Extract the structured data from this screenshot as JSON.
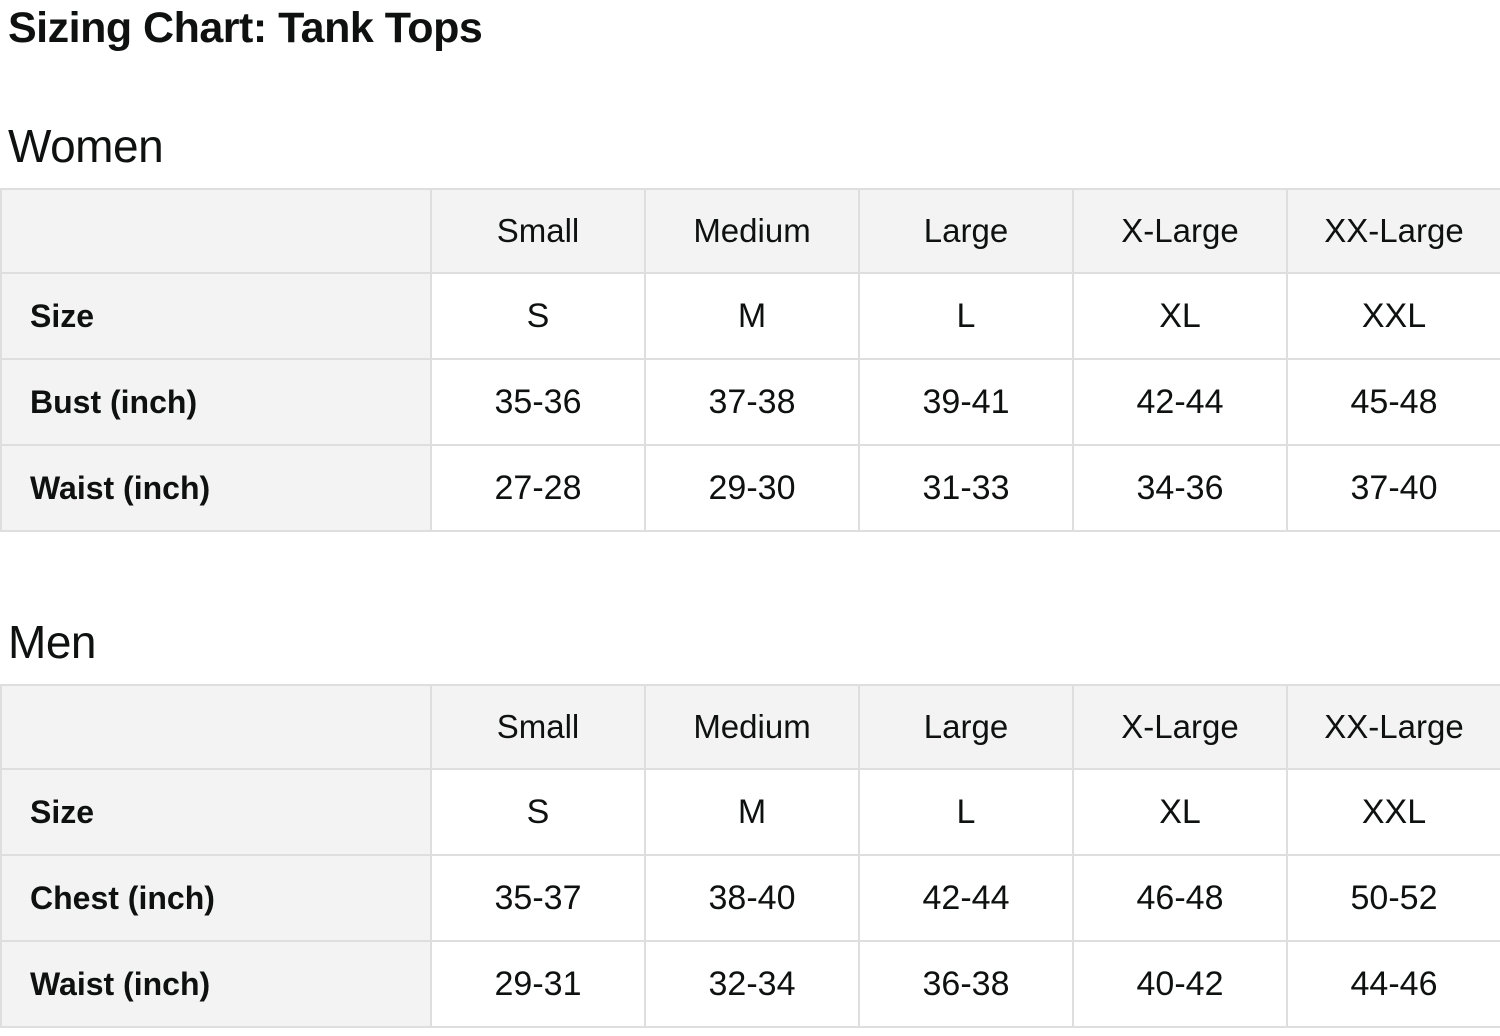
{
  "page_title": "Sizing Chart: Tank Tops",
  "colors": {
    "header_bg": "#f3f3f3",
    "label_bg": "#f3f3f3",
    "cell_bg": "#ffffff",
    "border": "#dedede",
    "text": "#0f1111"
  },
  "sections": [
    {
      "heading": "Women",
      "table": {
        "column_headers": [
          "Small",
          "Medium",
          "Large",
          "X-Large",
          "XX-Large"
        ],
        "rows": [
          {
            "label": "Size",
            "values": [
              "S",
              "M",
              "L",
              "XL",
              "XXL"
            ]
          },
          {
            "label": "Bust (inch)",
            "values": [
              "35-36",
              "37-38",
              "39-41",
              "42-44",
              "45-48"
            ]
          },
          {
            "label": "Waist (inch)",
            "values": [
              "27-28",
              "29-30",
              "31-33",
              "34-36",
              "37-40"
            ]
          }
        ]
      }
    },
    {
      "heading": "Men",
      "table": {
        "column_headers": [
          "Small",
          "Medium",
          "Large",
          "X-Large",
          "XX-Large"
        ],
        "rows": [
          {
            "label": "Size",
            "values": [
              "S",
              "M",
              "L",
              "XL",
              "XXL"
            ]
          },
          {
            "label": "Chest (inch)",
            "values": [
              "35-37",
              "38-40",
              "42-44",
              "46-48",
              "50-52"
            ]
          },
          {
            "label": "Waist (inch)",
            "values": [
              "29-31",
              "32-34",
              "36-38",
              "40-42",
              "44-46"
            ]
          }
        ]
      }
    }
  ]
}
